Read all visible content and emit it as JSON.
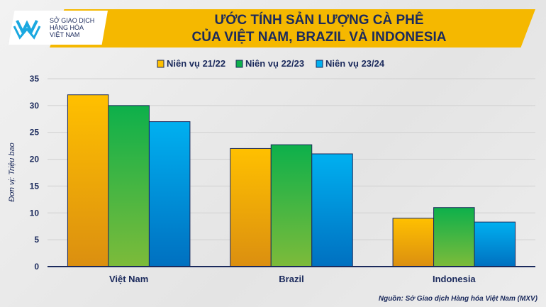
{
  "header": {
    "title_line1": "ƯỚC TÍNH SẢN LƯỢNG CÀ PHÊ",
    "title_line2": "CỦA VIỆT NAM, BRAZIL VÀ INDONESIA",
    "logo": {
      "line1": "SỞ GIAO DỊCH",
      "line2": "HÀNG HÓA",
      "line3": "VIỆT NAM"
    }
  },
  "source": "Nguồn: Sở Giao dịch Hàng hóa Việt Nam (MXV)",
  "chart_data": {
    "type": "bar",
    "title": "ƯỚC TÍNH SẢN LƯỢNG CÀ PHÊ CỦA VIỆT NAM, BRAZIL VÀ INDONESIA",
    "ylabel": "Đơn vị: Triệu bao",
    "xlabel": "",
    "categories": [
      "Việt Nam",
      "Brazil",
      "Indonesia"
    ],
    "ylim": [
      0,
      35
    ],
    "yticks": [
      0,
      5,
      10,
      15,
      20,
      25,
      30,
      35
    ],
    "grid": true,
    "legend_position": "top",
    "series": [
      {
        "name": "Niên vụ 21/22",
        "values": [
          32,
          22,
          9
        ],
        "color": "#ffc000"
      },
      {
        "name": "Niên vụ 22/23",
        "values": [
          30,
          22.7,
          11
        ],
        "color": "#0db04b"
      },
      {
        "name": "Niên vụ 23/24",
        "values": [
          27,
          21,
          8.3
        ],
        "color": "#00b0f0"
      }
    ]
  }
}
